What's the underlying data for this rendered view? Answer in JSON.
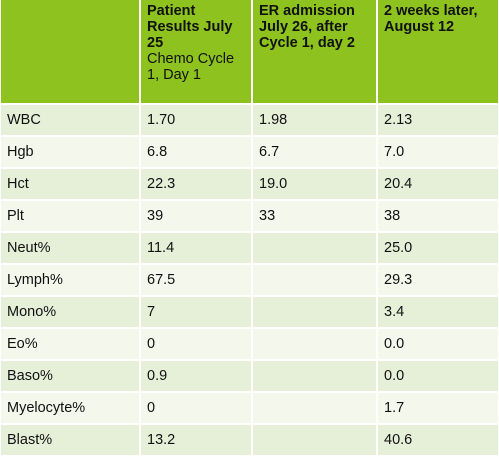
{
  "header": {
    "col1_bold": "Patient Results July 25",
    "col1_normal": "Chemo Cycle 1, Day 1",
    "col2": "ER admission July 26, after Cycle 1, day 2",
    "col3": "2 weeks later, August 12"
  },
  "rows": [
    [
      "WBC",
      "1.70",
      "1.98",
      "2.13"
    ],
    [
      "Hgb",
      "6.8",
      "6.7",
      "7.0"
    ],
    [
      "Hct",
      "22.3",
      "19.0",
      "20.4"
    ],
    [
      "Plt",
      "39",
      "33",
      "38"
    ],
    [
      "Neut%",
      "11.4",
      "",
      "25.0"
    ],
    [
      "Lymph%",
      "67.5",
      "",
      "29.3"
    ],
    [
      "Mono%",
      "7",
      "",
      "3.4"
    ],
    [
      "Eo%",
      "0",
      "",
      "0.0"
    ],
    [
      "Baso%",
      "0.9",
      "",
      "0.0"
    ],
    [
      "Myelocyte%",
      "0",
      "",
      "1.7"
    ],
    [
      "Blast%",
      "13.2",
      "",
      "40.6"
    ]
  ]
}
